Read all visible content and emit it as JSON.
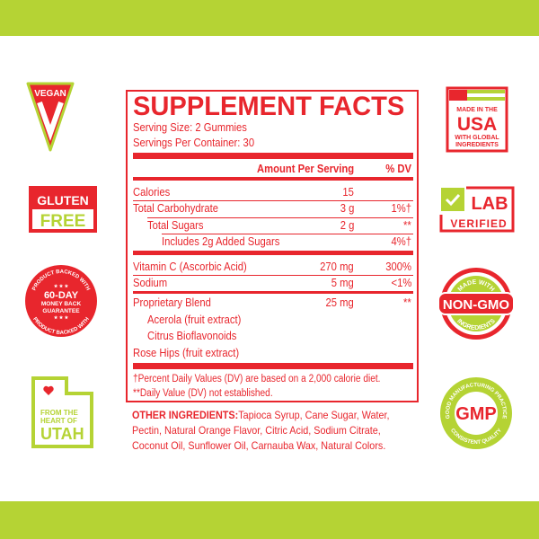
{
  "colors": {
    "brand_red": "#e8262d",
    "brand_green": "#b5d334"
  },
  "facts": {
    "title": "SUPPLEMENT FACTS",
    "serving_size": "Serving Size: 2 Gummies",
    "servings_per_container": "Servings Per Container: 30",
    "header_amount": "Amount Per Serving",
    "header_dv": "% DV",
    "rows": [
      {
        "name": "Calories",
        "amount": "15",
        "dv": ""
      },
      {
        "name": "Total Carbohydrate",
        "amount": "3 g",
        "dv": "1%†"
      },
      {
        "name": "Total Sugars",
        "amount": "2 g",
        "dv": "**"
      },
      {
        "name": "Includes 2g Added Sugars",
        "amount": "",
        "dv": "4%†"
      },
      {
        "name": "Vitamin C (Ascorbic Acid)",
        "amount": "270 mg",
        "dv": "300%"
      },
      {
        "name": "Sodium",
        "amount": "5 mg",
        "dv": "<1%"
      },
      {
        "name": "Proprietary Blend",
        "amount": "25 mg",
        "dv": "**"
      },
      {
        "name": "Acerola (fruit extract)",
        "amount": "",
        "dv": ""
      },
      {
        "name": "Citrus Bioflavonoids",
        "amount": "",
        "dv": ""
      },
      {
        "name": "Rose Hips (fruit extract)",
        "amount": "",
        "dv": ""
      }
    ],
    "footnote1": "†Percent Daily Values (DV) are based on a 2,000 calorie diet.",
    "footnote2": "**Daily Value (DV) not established."
  },
  "other": {
    "label": "OTHER INGREDIENTS:",
    "text1": "Tapioca Syrup, Cane Sugar, Water,",
    "text2": "Pectin, Natural Orange Flavor, Citric Acid, Sodium Citrate,",
    "text3": "Coconut Oil, Sunflower Oil, Carnauba Wax, Natural Colors."
  },
  "badges": {
    "vegan": "VEGAN",
    "gluten1": "GLUTEN",
    "gluten2": "FREE",
    "money_ring": "PRODUCT BACKED WITH",
    "money1": "60-DAY",
    "money2": "MONEY BACK",
    "money3": "GUARANTEE",
    "utah1": "FROM THE",
    "utah2": "HEART OF",
    "utah3": "UTAH",
    "usa1": "MADE IN THE",
    "usa2": "USA",
    "usa3": "WITH GLOBAL",
    "usa4": "INGREDIENTS",
    "lab1": "LAB",
    "lab2": "VERIFIED",
    "gmo_top": "MADE WITH",
    "gmo_main": "NON-GMO",
    "gmo_bottom": "INGREDIENTS",
    "gmp_ring_top": "GOOD MANUFACTURING PRACTICE",
    "gmp_ring_bottom": "CONSISTENT QUALITY",
    "gmp_main": "GMP"
  }
}
